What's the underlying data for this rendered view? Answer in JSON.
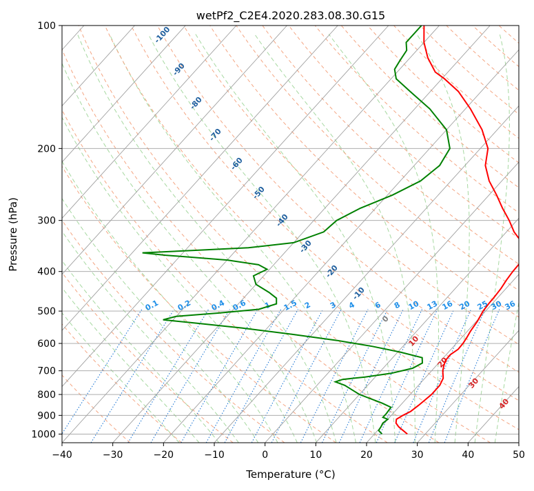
{
  "chart_data": {
    "type": "line",
    "title": "wetPf2_C2E4.2020.283.08.30.G15",
    "xlabel": "Temperature (°C)",
    "ylabel": "Pressure (hPa)",
    "xlim": [
      -40,
      50
    ],
    "ylim": [
      1050,
      100
    ],
    "y_scale": "log",
    "grid": true,
    "x_ticks": [
      -40,
      -30,
      -20,
      -10,
      0,
      10,
      20,
      30,
      40,
      50
    ],
    "y_ticks": [
      100,
      200,
      300,
      400,
      500,
      600,
      700,
      800,
      900,
      1000
    ],
    "series": [
      {
        "color": "#ff0000",
        "points": [
          [
            26.5,
            1000
          ],
          [
            25.0,
            980
          ],
          [
            23.5,
            960
          ],
          [
            22.3,
            940
          ],
          [
            21.7,
            920
          ],
          [
            22.3,
            900
          ],
          [
            23.1,
            880
          ],
          [
            23.6,
            850
          ],
          [
            24.2,
            800
          ],
          [
            24.2,
            760
          ],
          [
            23.6,
            730
          ],
          [
            22.2,
            700
          ],
          [
            21.5,
            680
          ],
          [
            20.9,
            660
          ],
          [
            20.8,
            640
          ],
          [
            21.4,
            620
          ],
          [
            21.3,
            600
          ],
          [
            21.0,
            580
          ],
          [
            20.6,
            560
          ],
          [
            20.2,
            530
          ],
          [
            19.5,
            500
          ],
          [
            19.3,
            480
          ],
          [
            19.2,
            460
          ],
          [
            19.0,
            440
          ],
          [
            18.6,
            420
          ],
          [
            18.3,
            400
          ],
          [
            18.2,
            380
          ],
          [
            17.0,
            360
          ],
          [
            15.0,
            340
          ],
          [
            11.5,
            320
          ],
          [
            8.5,
            300
          ],
          [
            5.0,
            280
          ],
          [
            1.5,
            260
          ],
          [
            -2.5,
            240
          ],
          [
            -6.0,
            220
          ],
          [
            -8.5,
            200
          ],
          [
            -13.0,
            180
          ],
          [
            -19.0,
            160
          ],
          [
            -24.5,
            145
          ],
          [
            -29.5,
            135
          ],
          [
            -32.5,
            130
          ],
          [
            -36.5,
            120
          ],
          [
            -40.0,
            110
          ],
          [
            -43.0,
            100
          ]
        ]
      },
      {
        "color": "#008000",
        "points": [
          [
            21.5,
            1000
          ],
          [
            20.2,
            980
          ],
          [
            20.0,
            960
          ],
          [
            19.7,
            940
          ],
          [
            20.0,
            920
          ],
          [
            18.7,
            910
          ],
          [
            18.7,
            890
          ],
          [
            18.5,
            860
          ],
          [
            16.0,
            840
          ],
          [
            10.0,
            800
          ],
          [
            5.5,
            760
          ],
          [
            3.0,
            745
          ],
          [
            4.0,
            735
          ],
          [
            8.0,
            725
          ],
          [
            12.5,
            710
          ],
          [
            15.8,
            690
          ],
          [
            16.8,
            670
          ],
          [
            15.8,
            650
          ],
          [
            10.5,
            630
          ],
          [
            4.0,
            610
          ],
          [
            -4.0,
            590
          ],
          [
            -14.0,
            570
          ],
          [
            -25.0,
            550
          ],
          [
            -35.0,
            535
          ],
          [
            -42.0,
            525
          ],
          [
            -40.0,
            515
          ],
          [
            -32.0,
            505
          ],
          [
            -25.0,
            495
          ],
          [
            -22.5,
            480
          ],
          [
            -23.5,
            465
          ],
          [
            -26.0,
            450
          ],
          [
            -30.0,
            430
          ],
          [
            -32.0,
            410
          ],
          [
            -30.5,
            395
          ],
          [
            -33.0,
            385
          ],
          [
            -40.0,
            375
          ],
          [
            -53.0,
            365
          ],
          [
            -58.0,
            360
          ],
          [
            -48.0,
            355
          ],
          [
            -38.0,
            350
          ],
          [
            -30.0,
            340
          ],
          [
            -26.0,
            320
          ],
          [
            -25.5,
            300
          ],
          [
            -23.0,
            280
          ],
          [
            -19.0,
            260
          ],
          [
            -16.0,
            240
          ],
          [
            -15.0,
            220
          ],
          [
            -16.0,
            200
          ],
          [
            -20.0,
            180
          ],
          [
            -27.0,
            160
          ],
          [
            -34.0,
            145
          ],
          [
            -39.0,
            135
          ],
          [
            -41.0,
            128
          ],
          [
            -41.5,
            122
          ],
          [
            -42.0,
            115
          ],
          [
            -43.5,
            110
          ],
          [
            -43.5,
            100
          ]
        ]
      }
    ],
    "dry_adiabat_labels": [
      "-100",
      "-90",
      "-80",
      "-70",
      "-60",
      "-50",
      "-40",
      "-30",
      "-20",
      "-10",
      "0",
      "10",
      "20",
      "30",
      "40"
    ],
    "mixing_ratio_labels": [
      "0.1",
      "0.2",
      "0.4",
      "0.6",
      "1",
      "1.5",
      "2",
      "3",
      "4",
      "6",
      "8",
      "10",
      "13",
      "16",
      "20",
      "25",
      "30",
      "36"
    ],
    "mixing_ratio_values": [
      0.1,
      0.2,
      0.4,
      0.6,
      1,
      1.5,
      2,
      3,
      4,
      6,
      8,
      10,
      13,
      16,
      20,
      25,
      30,
      36
    ],
    "colors": {
      "temperature": "#ff0000",
      "dewpoint": "#008000",
      "isotherm": "#a0a0a0",
      "dry_adiabat": "#f4a582",
      "moist_adiabat": "#a6d8a0",
      "mixing_ratio": "#1f77d4",
      "theta_label": "#1f5f9e",
      "mixing_label": "#1f8fe8",
      "warm_label": "#d62728"
    }
  }
}
